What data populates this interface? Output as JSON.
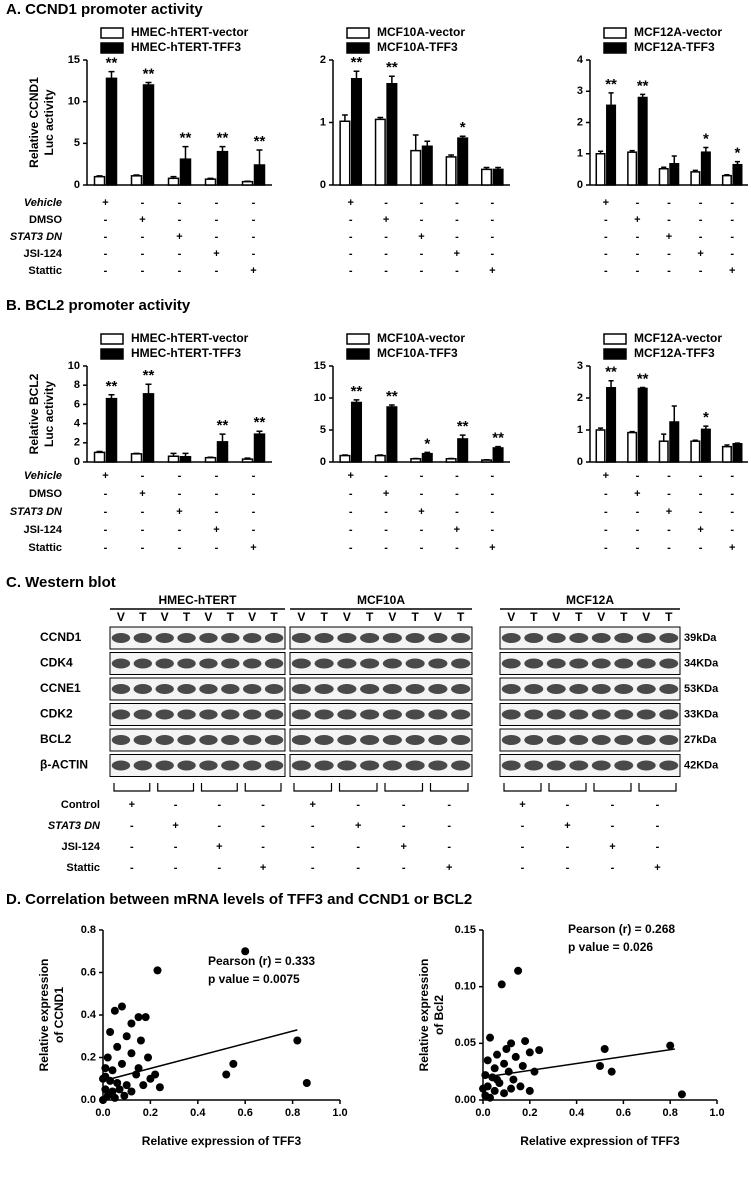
{
  "headings": [
    "A. CCND1 promoter activity",
    "B. BCL2 promoter activity",
    "C. Western blot",
    "D. Correlation between mRNA levels of TFF3 and CCND1 or BCL2"
  ],
  "treatments": [
    {
      "label": "Vehicle",
      "italic": true,
      "signs": [
        "+",
        "-",
        "-",
        "-",
        "-"
      ]
    },
    {
      "label": "DMSO",
      "italic": false,
      "signs": [
        "-",
        "+",
        "-",
        "-",
        "-"
      ]
    },
    {
      "label": "STAT3 DN",
      "italic": true,
      "signs": [
        "-",
        "-",
        "+",
        "-",
        "-"
      ]
    },
    {
      "label": "JSI-124",
      "italic": false,
      "signs": [
        "-",
        "-",
        "-",
        "+",
        "-"
      ]
    },
    {
      "label": "Stattic",
      "italic": false,
      "signs": [
        "-",
        "-",
        "-",
        "-",
        "+"
      ]
    }
  ],
  "western_blot": {
    "groups": [
      "HMEC-hTERT",
      "MCF10A",
      "MCF12A"
    ],
    "lanes": [
      "V",
      "T",
      "V",
      "T",
      "V",
      "T",
      "V",
      "T"
    ],
    "proteins": [
      {
        "name": "CCND1",
        "size": "39kDa"
      },
      {
        "name": "CDK4",
        "size": "34KDa"
      },
      {
        "name": "CCNE1",
        "size": "53KDa"
      },
      {
        "name": "CDK2",
        "size": "33KDa"
      },
      {
        "name": "BCL2",
        "size": "27kDa"
      },
      {
        "name": "β-ACTIN",
        "size": "42KDa"
      }
    ],
    "treatments": [
      {
        "label": "Control",
        "italic": false,
        "signs": [
          "+",
          "-",
          "-",
          "-"
        ]
      },
      {
        "label": "STAT3 DN",
        "italic": true,
        "signs": [
          "-",
          "+",
          "-",
          "-"
        ]
      },
      {
        "label": "JSI-124",
        "italic": false,
        "signs": [
          "-",
          "-",
          "+",
          "-"
        ]
      },
      {
        "label": "Stattic",
        "italic": false,
        "signs": [
          "-",
          "-",
          "-",
          "+"
        ]
      }
    ]
  },
  "chart_data": [
    {
      "type": "bar",
      "ylabel": [
        "Relative CCND1",
        "Luc activity"
      ],
      "categories": [
        null,
        null,
        null,
        null,
        null
      ],
      "ylim": [
        0,
        15
      ],
      "yticks": [
        0,
        5,
        10,
        15
      ],
      "series": [
        {
          "name": "HMEC-hTERT-vector",
          "color": "#ffffff",
          "values": [
            1,
            1.1,
            0.8,
            0.7,
            0.4
          ],
          "errors": [
            0.1,
            0.1,
            0.2,
            0.1,
            0.05
          ]
        },
        {
          "name": "HMEC-hTERT-TFF3",
          "color": "#000000",
          "values": [
            12.8,
            12,
            3.1,
            4,
            2.4
          ],
          "errors": [
            0.8,
            0.3,
            1.5,
            0.6,
            1.8
          ],
          "labels": [
            "**",
            "**",
            "**",
            "**",
            "**"
          ]
        }
      ]
    },
    {
      "type": "bar",
      "categories": [
        null,
        null,
        null,
        null,
        null
      ],
      "ylim": [
        0,
        2
      ],
      "yticks": [
        0,
        1,
        2
      ],
      "series": [
        {
          "name": "MCF10A-vector",
          "color": "#ffffff",
          "values": [
            1.02,
            1.05,
            0.55,
            0.45,
            0.25
          ],
          "errors": [
            0.1,
            0.03,
            0.25,
            0.03,
            0.03
          ]
        },
        {
          "name": "MCF10A-TFF3",
          "color": "#000000",
          "values": [
            1.7,
            1.62,
            0.62,
            0.75,
            0.25
          ],
          "errors": [
            0.12,
            0.12,
            0.08,
            0.03,
            0.03
          ],
          "labels": [
            "**",
            "**",
            null,
            "*",
            null
          ]
        }
      ]
    },
    {
      "type": "bar",
      "categories": [
        null,
        null,
        null,
        null,
        null
      ],
      "ylim": [
        0,
        4
      ],
      "yticks": [
        0,
        1,
        2,
        3,
        4
      ],
      "series": [
        {
          "name": "MCF12A-vector",
          "color": "#ffffff",
          "values": [
            1,
            1.05,
            0.52,
            0.42,
            0.3
          ],
          "errors": [
            0.08,
            0.05,
            0.05,
            0.05,
            0.03
          ]
        },
        {
          "name": "MCF12A-TFF3",
          "color": "#000000",
          "values": [
            2.55,
            2.8,
            0.68,
            1.05,
            0.65
          ],
          "errors": [
            0.4,
            0.1,
            0.25,
            0.15,
            0.1
          ],
          "labels": [
            "**",
            "**",
            null,
            "*",
            "*"
          ]
        }
      ]
    },
    {
      "type": "bar",
      "ylabel": [
        "Relative BCL2",
        "Luc activity"
      ],
      "categories": [
        null,
        null,
        null,
        null,
        null
      ],
      "ylim": [
        0,
        10
      ],
      "yticks": [
        0,
        2,
        4,
        6,
        8,
        10
      ],
      "series": [
        {
          "name": "HMEC-hTERT-vector",
          "color": "#ffffff",
          "values": [
            1,
            0.85,
            0.6,
            0.45,
            0.3
          ],
          "errors": [
            0.1,
            0.05,
            0.3,
            0.05,
            0.1
          ]
        },
        {
          "name": "HMEC-hTERT-TFF3",
          "color": "#000000",
          "values": [
            6.6,
            7.1,
            0.55,
            2.1,
            2.9
          ],
          "errors": [
            0.4,
            1,
            0.35,
            0.8,
            0.3
          ],
          "labels": [
            "**",
            "**",
            null,
            "**",
            "**"
          ]
        }
      ]
    },
    {
      "type": "bar",
      "categories": [
        null,
        null,
        null,
        null,
        null
      ],
      "ylim": [
        0,
        15
      ],
      "yticks": [
        0,
        5,
        10,
        15
      ],
      "series": [
        {
          "name": "MCF10A-vector",
          "color": "#ffffff",
          "values": [
            1,
            1,
            0.5,
            0.5,
            0.3
          ],
          "errors": [
            0.1,
            0.1,
            0.05,
            0.05,
            0.05
          ]
        },
        {
          "name": "MCF10A-TFF3",
          "color": "#000000",
          "values": [
            9.3,
            8.6,
            1.3,
            3.6,
            2.2
          ],
          "errors": [
            0.4,
            0.3,
            0.2,
            0.6,
            0.2
          ],
          "labels": [
            "**",
            "**",
            "*",
            "**",
            "**"
          ]
        }
      ]
    },
    {
      "type": "bar",
      "categories": [
        null,
        null,
        null,
        null,
        null
      ],
      "ylim": [
        0,
        3
      ],
      "yticks": [
        0,
        1,
        2,
        3
      ],
      "series": [
        {
          "name": "MCF12A-vector",
          "color": "#ffffff",
          "values": [
            1,
            0.92,
            0.65,
            0.65,
            0.48
          ],
          "errors": [
            0.06,
            0.03,
            0.22,
            0.03,
            0.05
          ]
        },
        {
          "name": "MCF12A-TFF3",
          "color": "#000000",
          "values": [
            2.32,
            2.3,
            1.25,
            1.02,
            0.57
          ],
          "errors": [
            0.22,
            0.03,
            0.5,
            0.1,
            0.02
          ],
          "labels": [
            "**",
            "**",
            null,
            "*",
            null
          ]
        }
      ]
    },
    {
      "type": "scatter",
      "ylabel": [
        "Relative expression",
        "of CCND1"
      ],
      "xlabel": "Relative expression of TFF3",
      "xlim": [
        0,
        1
      ],
      "xticks": [
        {
          "value": 0,
          "label": "0.0"
        },
        {
          "value": 0.2,
          "label": "0.2"
        },
        {
          "value": 0.4,
          "label": "0.4"
        },
        {
          "value": 0.6,
          "label": "0.6"
        },
        {
          "value": 0.8,
          "label": "0.8"
        },
        {
          "value": 1,
          "label": "1.0"
        }
      ],
      "ylim": [
        0,
        0.8
      ],
      "yticks": [
        {
          "value": 0,
          "label": "0.0"
        },
        {
          "value": 0.2,
          "label": "0.2"
        },
        {
          "value": 0.4,
          "label": "0.4"
        },
        {
          "value": 0.6,
          "label": "0.6"
        },
        {
          "value": 0.8,
          "label": "0.8"
        }
      ],
      "color": "#000000",
      "x": [
        0.6,
        0.23,
        0.82,
        0.86,
        0.55,
        0.52,
        0.08,
        0.05,
        0.15,
        0.18,
        0.12,
        0.03,
        0.1,
        0.16,
        0.06,
        0.02,
        0.12,
        0.19,
        0.08,
        0.01,
        0.04,
        0.14,
        0.22,
        0,
        0.03,
        0.06,
        0.1,
        0.17,
        0.24,
        0.01,
        0.04,
        0.07,
        0.12,
        0.02,
        0.05,
        0.09,
        0,
        0.15,
        0.2,
        0.01
      ],
      "y": [
        0.7,
        0.61,
        0.28,
        0.08,
        0.17,
        0.12,
        0.44,
        0.42,
        0.39,
        0.39,
        0.36,
        0.32,
        0.3,
        0.28,
        0.25,
        0.2,
        0.22,
        0.2,
        0.17,
        0.15,
        0.14,
        0.12,
        0.12,
        0.1,
        0.09,
        0.08,
        0.07,
        0.07,
        0.06,
        0.05,
        0.04,
        0.05,
        0.04,
        0.02,
        0.01,
        0.02,
        0,
        0.15,
        0.1,
        0.11
      ],
      "fit": {
        "x": [
          0,
          0.82
        ],
        "y": [
          0.09,
          0.33
        ]
      },
      "annotations": [
        "Pearson (r) = 0.333",
        "p value = 0.0075"
      ]
    },
    {
      "type": "scatter",
      "ylabel": [
        "Relative expression",
        "of Bcl2"
      ],
      "xlabel": "Relative expression of TFF3",
      "xlim": [
        0,
        1
      ],
      "xticks": [
        {
          "value": 0,
          "label": "0.0"
        },
        {
          "value": 0.2,
          "label": "0.2"
        },
        {
          "value": 0.4,
          "label": "0.4"
        },
        {
          "value": 0.6,
          "label": "0.6"
        },
        {
          "value": 0.8,
          "label": "0.8"
        },
        {
          "value": 1,
          "label": "1.0"
        }
      ],
      "ylim": [
        0,
        0.15
      ],
      "yticks": [
        {
          "value": 0,
          "label": "0.00"
        },
        {
          "value": 0.05,
          "label": "0.05"
        },
        {
          "value": 0.1,
          "label": "0.10"
        },
        {
          "value": 0.15,
          "label": "0.15"
        }
      ],
      "color": "#000000",
      "x": [
        0.15,
        0.08,
        0.52,
        0.8,
        0.85,
        0.55,
        0.5,
        0.03,
        0.12,
        0.18,
        0.1,
        0.2,
        0.24,
        0.06,
        0.14,
        0.02,
        0.09,
        0.17,
        0.22,
        0.05,
        0.11,
        0.01,
        0.04,
        0.13,
        0.07,
        0.02,
        0.16,
        0,
        0.05,
        0.09,
        0.01,
        0.03,
        0.2,
        0.06,
        0.12
      ],
      "y": [
        0.114,
        0.102,
        0.045,
        0.048,
        0.005,
        0.025,
        0.03,
        0.055,
        0.05,
        0.052,
        0.045,
        0.042,
        0.044,
        0.04,
        0.038,
        0.035,
        0.032,
        0.03,
        0.025,
        0.028,
        0.025,
        0.022,
        0.02,
        0.018,
        0.015,
        0.012,
        0.012,
        0.01,
        0.008,
        0.006,
        0.004,
        0.002,
        0.008,
        0.018,
        0.01
      ],
      "fit": {
        "x": [
          0,
          0.82
        ],
        "y": [
          0.02,
          0.045
        ]
      },
      "annotations": [
        "Pearson (r) = 0.268",
        "p value = 0.026"
      ]
    }
  ]
}
